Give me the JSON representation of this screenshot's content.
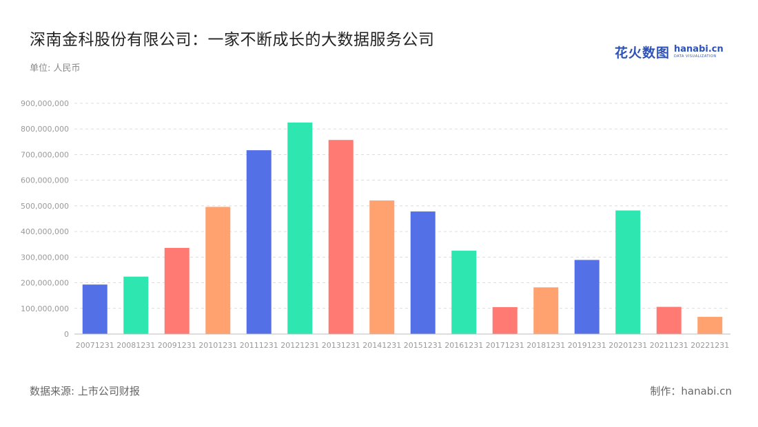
{
  "header": {
    "title": "深南金科股份有限公司：一家不断成长的大数据服务公司",
    "unit": "单位: 人民币"
  },
  "logo": {
    "cn_text": "花火数图",
    "en_text": "hanabi.cn",
    "sub_text": "DATA VISUALIZATION",
    "color": "#2d52b8"
  },
  "footer": {
    "source": "数据来源: 上市公司财报",
    "credit": "制作：hanabi.cn"
  },
  "palette": [
    "#5470e6",
    "#2ee6b0",
    "#ff7a73",
    "#ffa270"
  ],
  "chart_data": {
    "type": "bar",
    "categories": [
      "20071231",
      "20081231",
      "20091231",
      "20101231",
      "20111231",
      "20121231",
      "20131231",
      "20141231",
      "20151231",
      "20161231",
      "20171231",
      "20181231",
      "20191231",
      "20201231",
      "20211231",
      "20221231"
    ],
    "values": [
      193000000,
      224000000,
      336000000,
      496000000,
      717000000,
      825000000,
      757000000,
      521000000,
      478000000,
      325000000,
      105000000,
      182000000,
      289000000,
      482000000,
      106000000,
      67000000
    ],
    "ylim": [
      0,
      900000000
    ],
    "yticks": [
      0,
      100000000,
      200000000,
      300000000,
      400000000,
      500000000,
      600000000,
      700000000,
      800000000,
      900000000
    ],
    "ytick_labels": [
      "0",
      "100,000,000",
      "200,000,000",
      "300,000,000",
      "400,000,000",
      "500,000,000",
      "600,000,000",
      "700,000,000",
      "800,000,000",
      "900,000,000"
    ],
    "grid": true,
    "bar_colors": [
      "#5470e6",
      "#2ee6b0",
      "#ff7a73",
      "#ffa270",
      "#5470e6",
      "#2ee6b0",
      "#ff7a73",
      "#ffa270",
      "#5470e6",
      "#2ee6b0",
      "#ff7a73",
      "#ffa270",
      "#5470e6",
      "#2ee6b0",
      "#ff7a73",
      "#ffa270"
    ]
  }
}
